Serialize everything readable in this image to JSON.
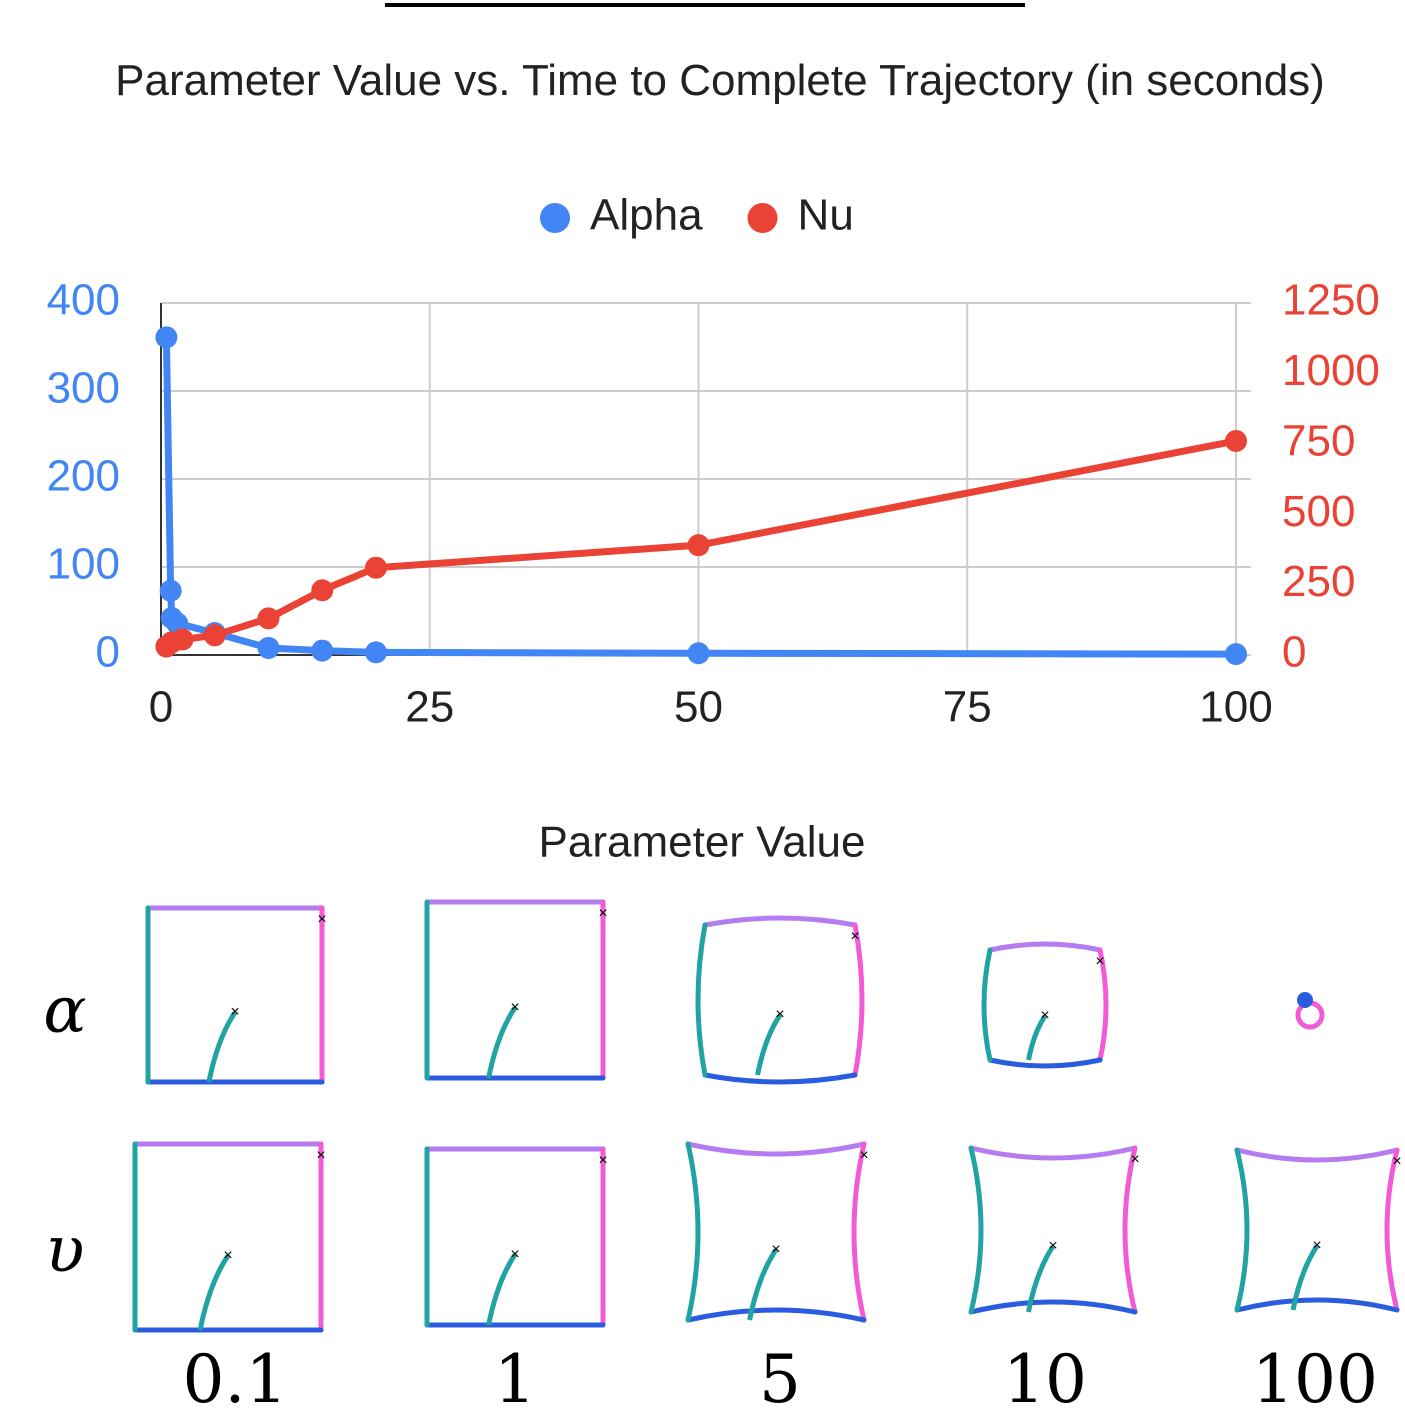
{
  "chart_data": {
    "type": "line",
    "title": "Parameter Value vs. Time to Complete Trajectory (in seconds)",
    "series": [
      {
        "name": "Alpha",
        "color": "#4285f4",
        "axis": "y",
        "x": [
          0.5,
          0.9,
          1,
          1.5,
          5,
          10,
          15,
          20,
          50,
          100
        ],
        "values": [
          361,
          73,
          42,
          36,
          25,
          8,
          5,
          3,
          2,
          1
        ]
      },
      {
        "name": "Nu",
        "color": "#ea4335",
        "axis": "y2",
        "x": [
          0.5,
          1,
          2,
          5,
          10,
          15,
          20,
          50,
          100
        ],
        "values": [
          30,
          45,
          55,
          70,
          130,
          230,
          310,
          390,
          760
        ]
      }
    ],
    "xlim": [
      0,
      100
    ],
    "xticks": [
      0,
      25,
      50,
      75,
      100
    ],
    "ylim": [
      0,
      400
    ],
    "yticks": [
      0,
      100,
      200,
      300,
      400
    ],
    "y2lim": [
      0,
      1250
    ],
    "y2ticks": [
      0,
      250,
      500,
      750,
      1000,
      1250
    ],
    "grid": true,
    "legend": "top"
  },
  "figure": {
    "title": "Parameter Value",
    "rows": [
      "α",
      "υ"
    ],
    "columns": [
      "0.1",
      "1",
      "5",
      "10",
      "100"
    ]
  }
}
